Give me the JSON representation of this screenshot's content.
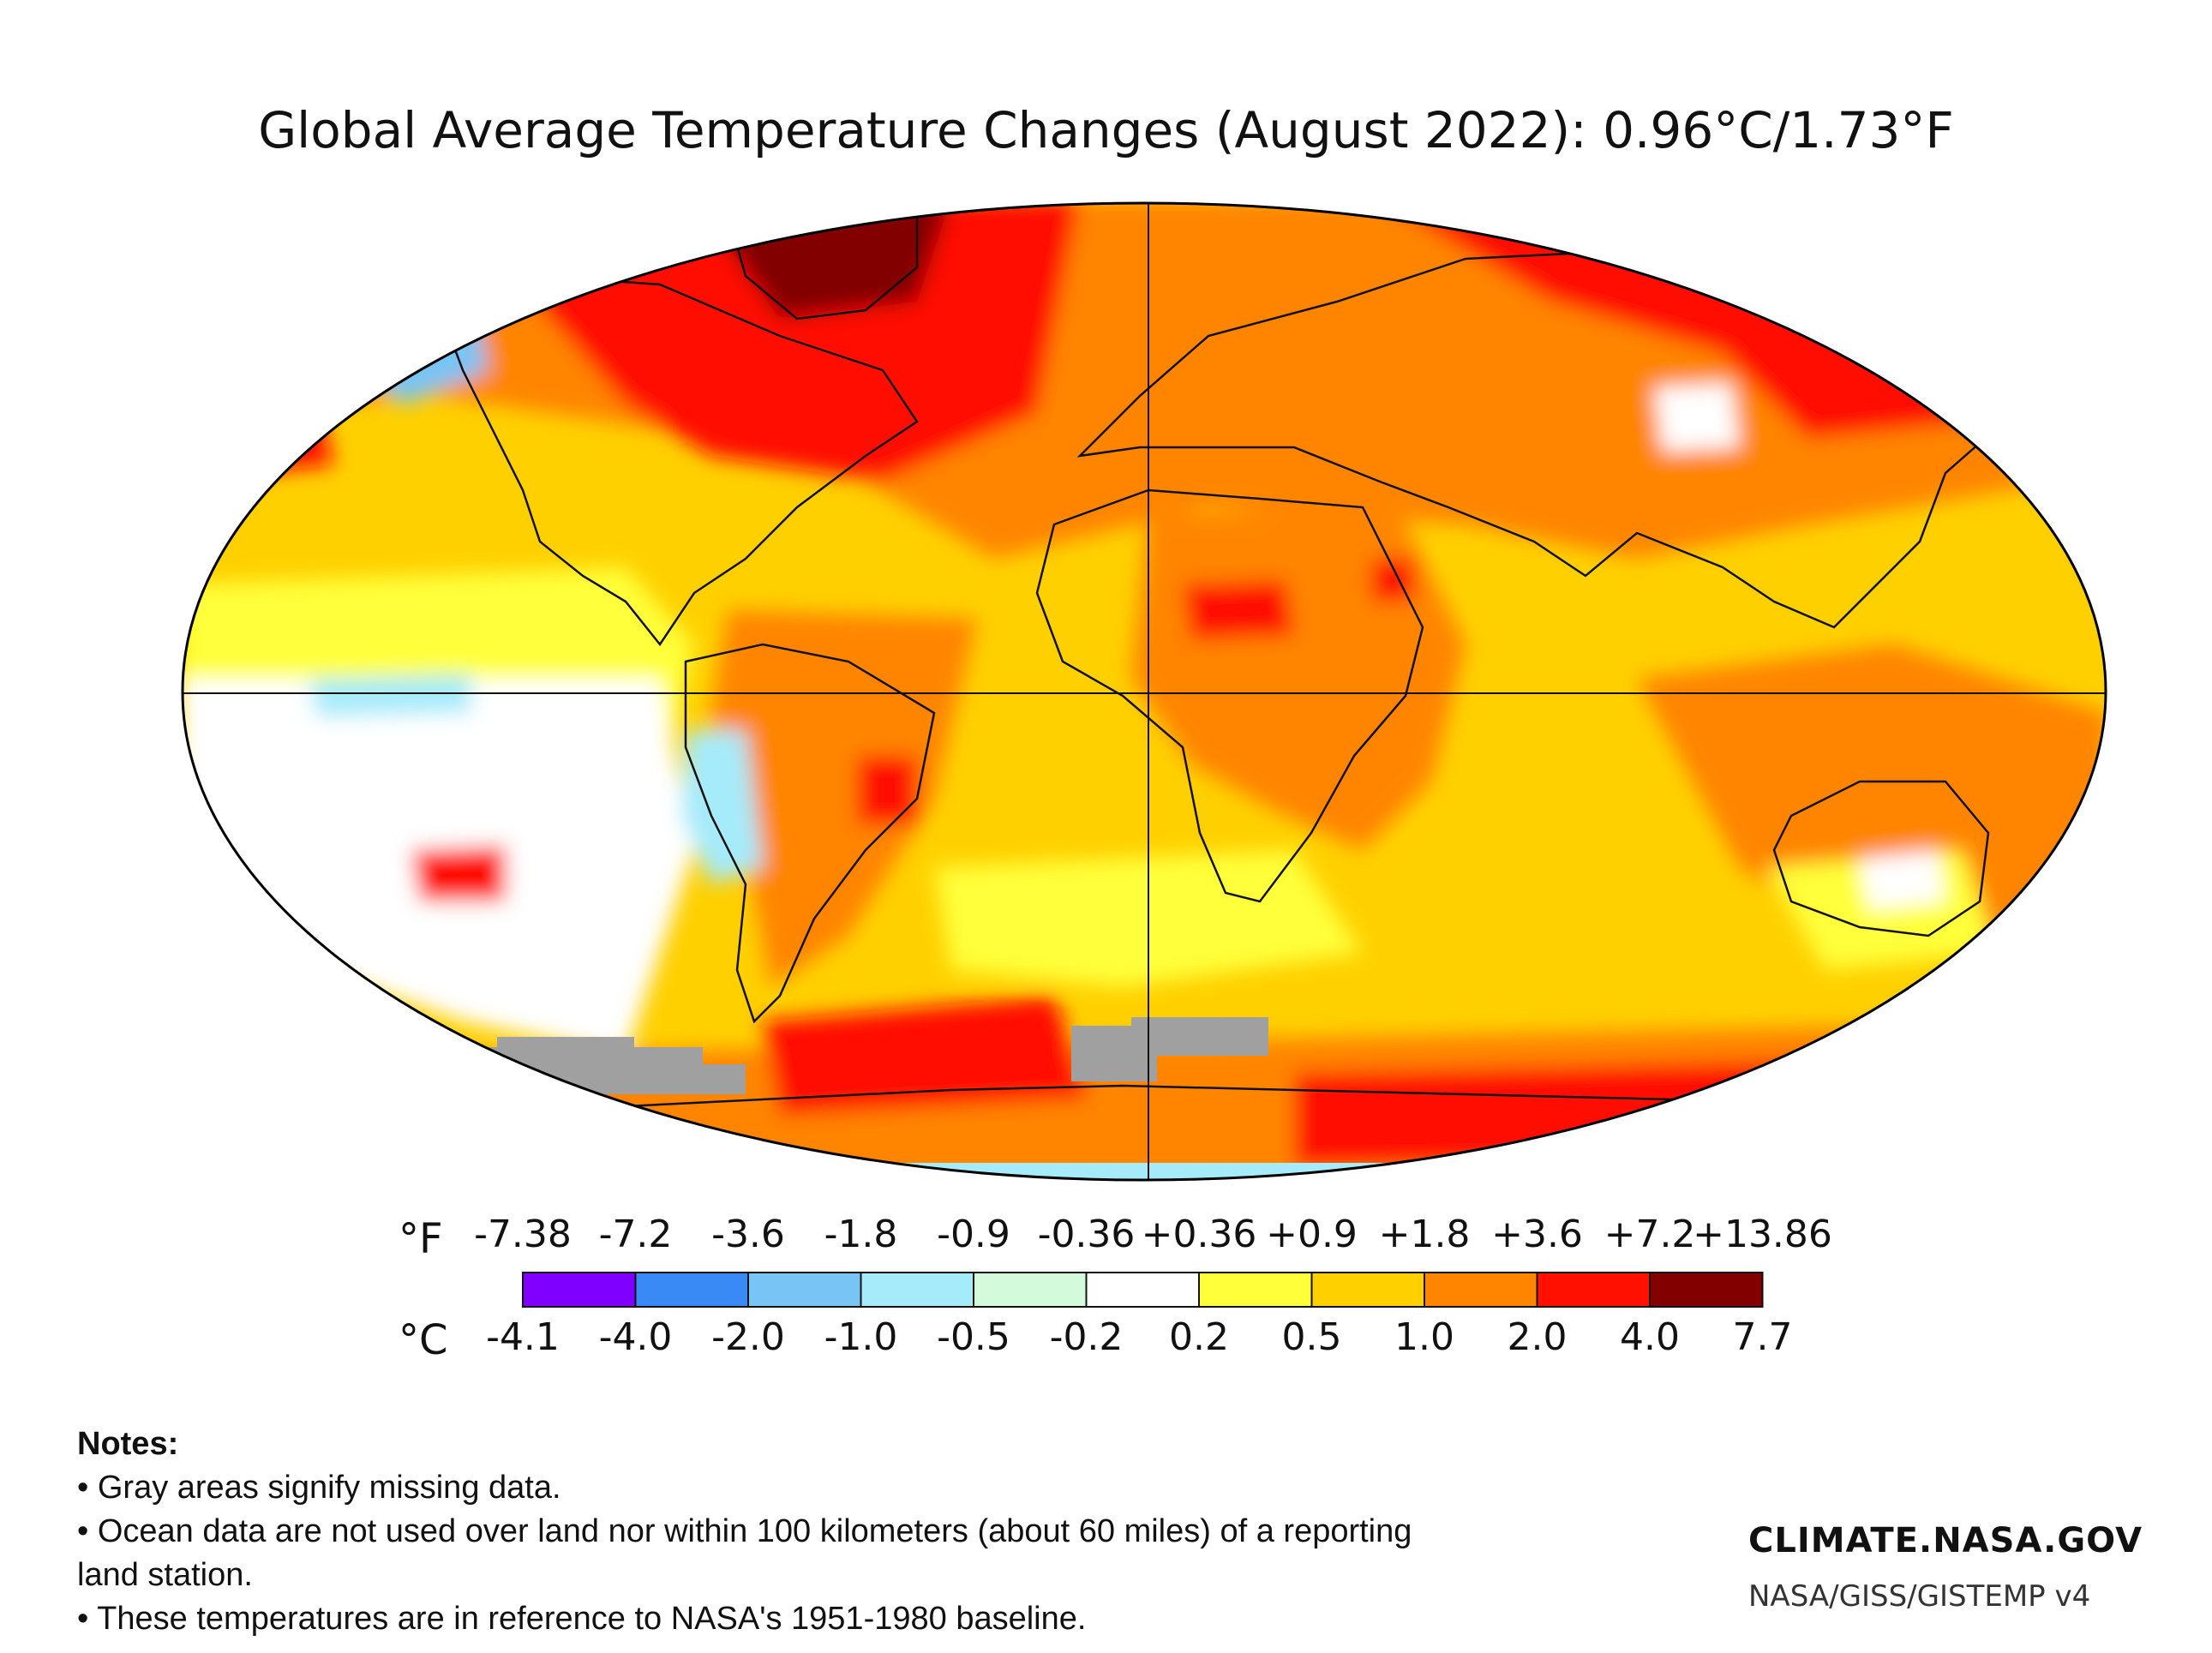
{
  "title": "Global Average Temperature Changes (August 2022): 0.96°C/1.73°F",
  "legend": {
    "unit_f": "°F",
    "unit_c": "°C",
    "f_ticks": [
      "-7.38",
      "-7.2",
      "-3.6",
      "-1.8",
      "-0.9",
      "-0.36",
      "+0.36",
      "+0.9",
      "+1.8",
      "+3.6",
      "+7.2",
      "+13.86"
    ],
    "c_ticks": [
      "-4.1",
      "-4.0",
      "-2.0",
      "-1.0",
      "-0.5",
      "-0.2",
      "0.2",
      "0.5",
      "1.0",
      "2.0",
      "4.0",
      "7.7"
    ],
    "colors": [
      "#8000ff",
      "#3a8af5",
      "#78c4f5",
      "#a6ebfa",
      "#d4fadc",
      "#ffffff",
      "#ffff3a",
      "#ffd000",
      "#ff8500",
      "#ff1000",
      "#820000"
    ]
  },
  "map": {
    "missing_color": "#a0a0a0"
  },
  "notes": {
    "heading": "Notes:",
    "items": [
      "• Gray areas signify missing data.",
      "• Ocean data are not used over land nor within 100 kilometers (about 60 miles) of a reporting land station.",
      "• These temperatures are in reference to NASA's 1951-1980 baseline."
    ]
  },
  "brand": {
    "site": "CLIMATE.NASA.GOV",
    "source": "NASA/GISS/GISTEMP v4"
  }
}
